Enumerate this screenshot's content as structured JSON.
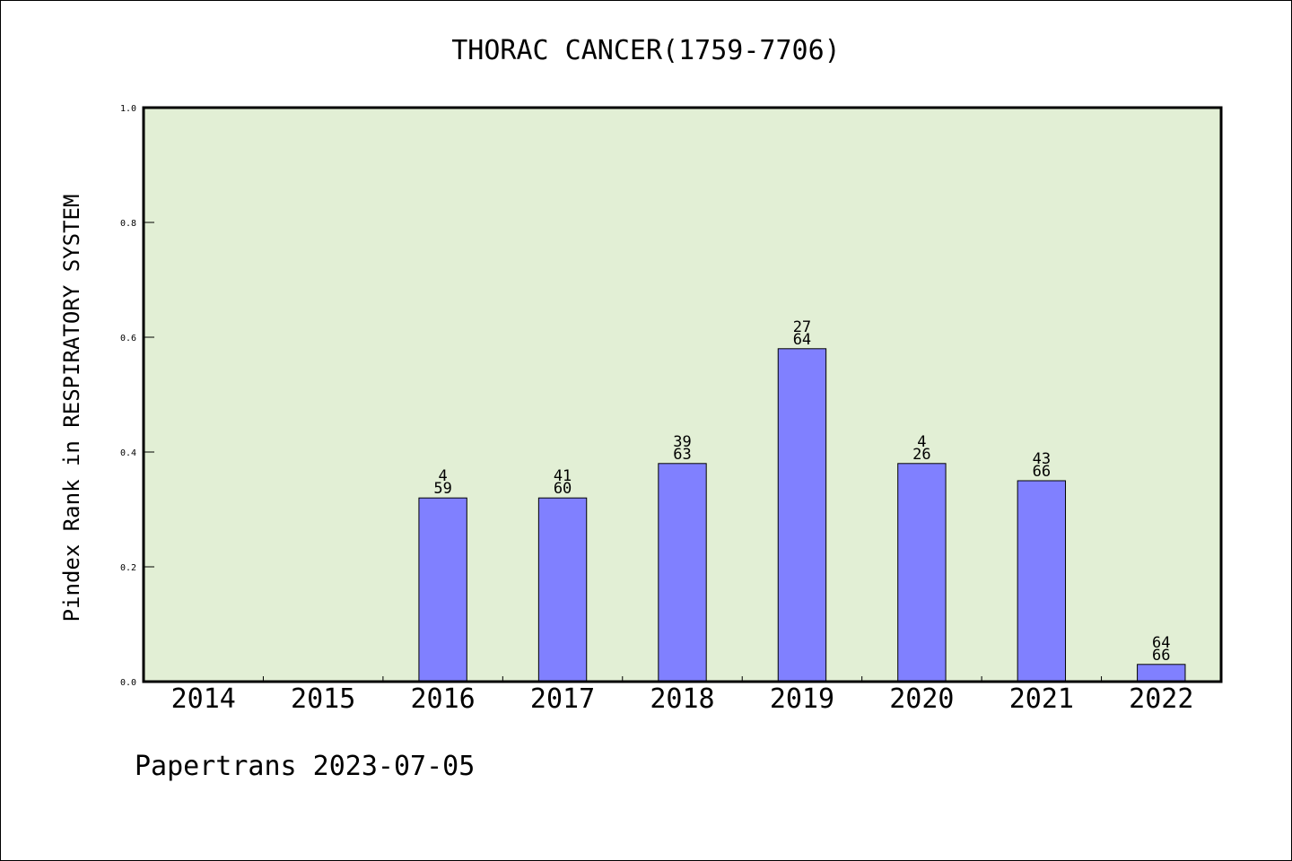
{
  "chart_data": {
    "type": "bar",
    "title": "THORAC CANCER(1759-7706)",
    "xlabel": "",
    "ylabel": "Pindex Rank in RESPIRATORY SYSTEM",
    "ylim": [
      0,
      1.0
    ],
    "yticks": [
      "0.0",
      "0.2",
      "0.4",
      "0.6",
      "0.8",
      "1.0"
    ],
    "grid": false,
    "categories": [
      "2014",
      "2015",
      "2016",
      "2017",
      "2018",
      "2019",
      "2020",
      "2021",
      "2022"
    ],
    "values": [
      null,
      null,
      0.32,
      0.32,
      0.38,
      0.58,
      0.38,
      0.35,
      0.03
    ],
    "label_top": [
      "",
      "",
      "4",
      "41",
      "39",
      "27",
      "4",
      "43",
      "64"
    ],
    "label_bottom": [
      "",
      "",
      "59",
      "60",
      "63",
      "64",
      "26",
      "66",
      "66"
    ],
    "colors": {
      "plot_background": "#e2efd5",
      "bar_fill": "#8080ff",
      "bar_stroke": "#000000"
    }
  },
  "footer": {
    "text": "Papertrans 2023-07-05"
  }
}
